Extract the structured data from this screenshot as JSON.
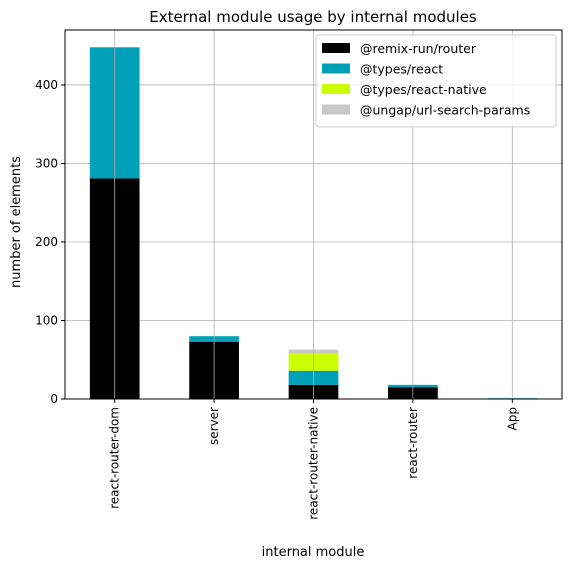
{
  "chart_data": {
    "type": "bar",
    "stacked": true,
    "title": "External module usage by internal modules",
    "xlabel": "internal module",
    "ylabel": "number of elements",
    "categories": [
      "react-router-dom",
      "server",
      "react-router-native",
      "react-router",
      "App"
    ],
    "ylim": [
      0,
      470
    ],
    "yticks": [
      0,
      100,
      200,
      300,
      400
    ],
    "grid": true,
    "legend_position": "top-right",
    "series": [
      {
        "name": "@remix-run/router",
        "color": "#000000",
        "values": [
          281,
          73,
          18,
          15,
          0
        ]
      },
      {
        "name": "@types/react",
        "color": "#00a0b8",
        "values": [
          167,
          7,
          18,
          3,
          1
        ]
      },
      {
        "name": "@types/react-native",
        "color": "#ccff00",
        "values": [
          0,
          0,
          22,
          0,
          0
        ]
      },
      {
        "name": "@ungap/url-search-params",
        "color": "#c8c8c8",
        "values": [
          0,
          0,
          5,
          0,
          0
        ]
      }
    ]
  }
}
